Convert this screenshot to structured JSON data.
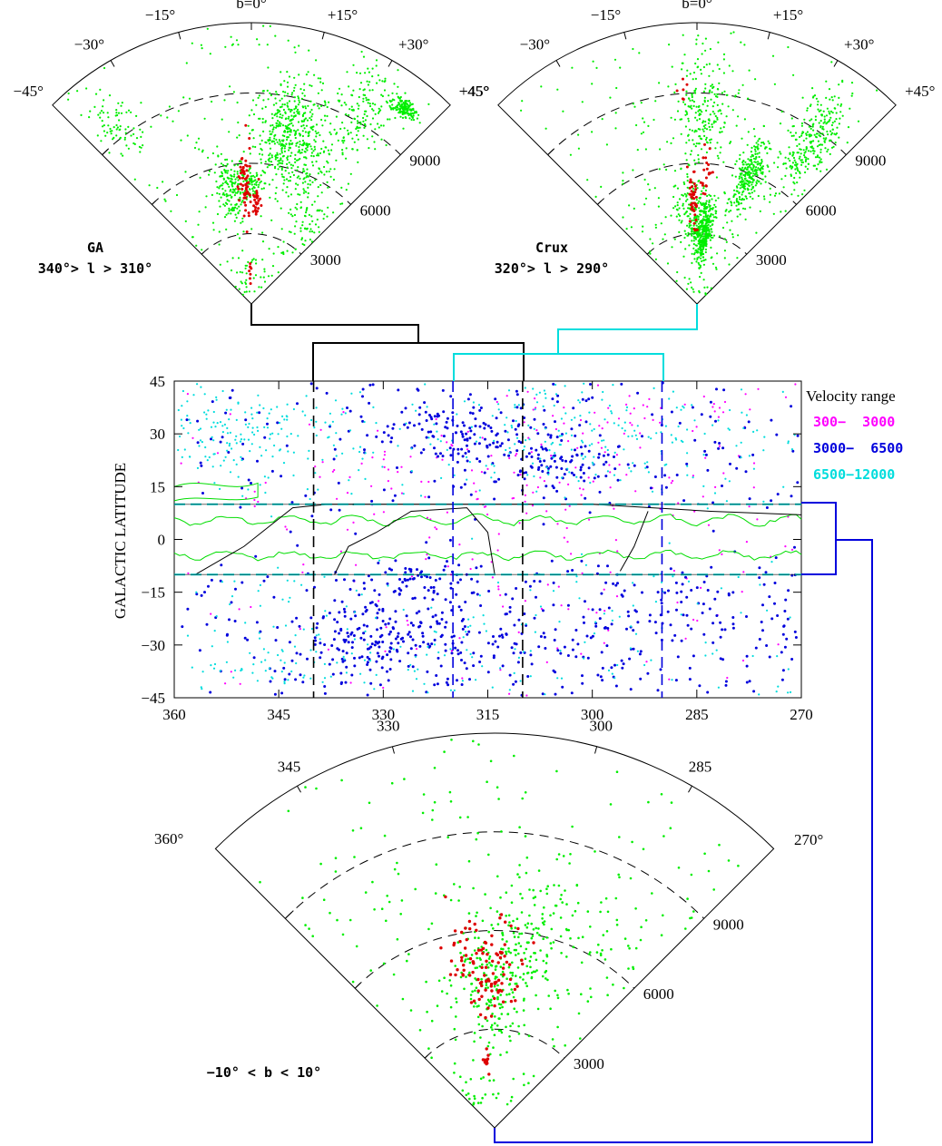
{
  "chart_data": [
    {
      "type": "scatter",
      "panel": "top-left wedge",
      "name_label": "GA",
      "range_label": "340°> l > 310°",
      "angular_axis": "b",
      "angle_ticks": [
        "−45°",
        "−30°",
        "−15°",
        "b=0°",
        "+15°",
        "+30°",
        "+45°"
      ],
      "radial_ticks": [
        "3000",
        "6000",
        "9000"
      ],
      "radial_max": 12000,
      "series": [
        {
          "color": "#00ee00",
          "clusters": [
            [
              -10,
              5000,
              0.9,
              1500,
              160
            ],
            [
              12,
              7500,
              1.4,
              2200,
              420
            ],
            [
              38,
              10600,
              0.4,
              400,
              170
            ],
            [
              -38,
              9500,
              0.6,
              1400,
              60
            ],
            [
              35,
              4200,
              1.2,
              1500,
              40
            ],
            [
              25,
              6000,
              1.2,
              2300,
              90
            ],
            [
              30,
              9500,
              1.0,
              2000,
              140
            ],
            [
              0,
              5200,
              0.5,
              500,
              60
            ]
          ],
          "background_points": 260
        },
        {
          "color": "#dd0000",
          "clusters": [
            [
              -3,
              5000,
              0.35,
              1800,
              60
            ],
            [
              3,
              4300,
              0.3,
              800,
              25
            ],
            [
              -2,
              1500,
              0.2,
              900,
              8
            ]
          ]
        }
      ]
    },
    {
      "type": "scatter",
      "panel": "top-right wedge",
      "name_label": "Crux",
      "range_label": "320°> l > 290°",
      "angular_axis": "b",
      "angle_ticks": [
        "−45°",
        "−30°",
        "−15°",
        "b=0°",
        "+15°",
        "+30°",
        "+45°"
      ],
      "radial_ticks": [
        "3000",
        "6000",
        "9000"
      ],
      "radial_max": 12000,
      "series": [
        {
          "color": "#00ee00",
          "clusters": [
            [
              5,
              3200,
              0.8,
              1400,
              360
            ],
            [
              22,
              6000,
              0.7,
              1700,
              280
            ],
            [
              35,
              8500,
              0.8,
              2500,
              260
            ],
            [
              -5,
              4000,
              1.0,
              2000,
              120
            ],
            [
              2,
              8500,
              1.0,
              2400,
              200
            ]
          ],
          "background_points": 220
        },
        {
          "color": "#dd0000",
          "clusters": [
            [
              -2,
              4200,
              0.25,
              1500,
              45
            ],
            [
              4,
              5500,
              0.3,
              1400,
              20
            ],
            [
              -4,
              9000,
              0.2,
              900,
              6
            ]
          ]
        }
      ]
    },
    {
      "type": "scatter",
      "panel": "center map",
      "xlabel": "",
      "ylabel": "GALACTIC LATITUDE",
      "xlim": [
        360,
        270
      ],
      "ylim": [
        -45,
        45
      ],
      "x_ticks": [
        "360",
        "345",
        "330",
        "315",
        "300",
        "285",
        "270"
      ],
      "y_ticks": [
        "−45",
        "−30",
        "−15",
        "0",
        "15",
        "30",
        "45"
      ],
      "legend": {
        "title": "Velocity range",
        "position": "right",
        "items": [
          {
            "label": "300−  3000",
            "color": "#ff00ff"
          },
          {
            "label": "3000−  6500",
            "color": "#0000dd"
          },
          {
            "label": "6500−12000",
            "color": "#00dddd"
          }
        ]
      },
      "series": [
        {
          "name": "300−  3000",
          "color": "#ff00ff",
          "clusters": [
            [
              312,
              10,
              20,
              14,
              150
            ],
            [
              290,
              35,
              8,
              6,
              30
            ]
          ],
          "background_points": 120
        },
        {
          "name": "3000−  6500",
          "color": "#0000dd",
          "clusters": [
            [
              330,
              -28,
              6,
              6,
              180
            ],
            [
              318,
              30,
              6,
              5,
              140
            ],
            [
              305,
              22,
              5,
              4,
              80
            ],
            [
              325,
              -12,
              4,
              3,
              60
            ],
            [
              290,
              -25,
              12,
              10,
              110
            ],
            [
              315,
              -30,
              10,
              8,
              80
            ]
          ],
          "background_points": 380
        },
        {
          "name": "6500−12000",
          "color": "#00dddd",
          "clusters": [
            [
              350,
              30,
              8,
              6,
              160
            ],
            [
              300,
              28,
              12,
              8,
              150
            ],
            [
              340,
              -35,
              10,
              6,
              80
            ]
          ],
          "background_points": 300
        }
      ]
    },
    {
      "type": "scatter",
      "panel": "bottom wedge",
      "range_label": "−10° < b < 10°",
      "angular_axis": "l",
      "angle_ticks": [
        "360°",
        "345",
        "330",
        "300",
        "285",
        "270°"
      ],
      "radial_ticks": [
        "3000",
        "6000",
        "9000"
      ],
      "radial_max": 12000,
      "series": [
        {
          "color": "#00ee00",
          "clusters": [
            [
              317,
              4500,
              3,
              1500,
              140
            ],
            [
              305,
              5500,
              3,
              1600,
              110
            ],
            [
              300,
              7000,
              6,
              2000,
              70
            ]
          ],
          "background_points": 240
        },
        {
          "color": "#dd0000",
          "clusters": [
            [
              320,
              4800,
              2.5,
              1200,
              70
            ],
            [
              310,
              5000,
              3,
              1200,
              35
            ],
            [
              322,
              2000,
              1,
              500,
              10
            ]
          ]
        }
      ]
    }
  ]
}
